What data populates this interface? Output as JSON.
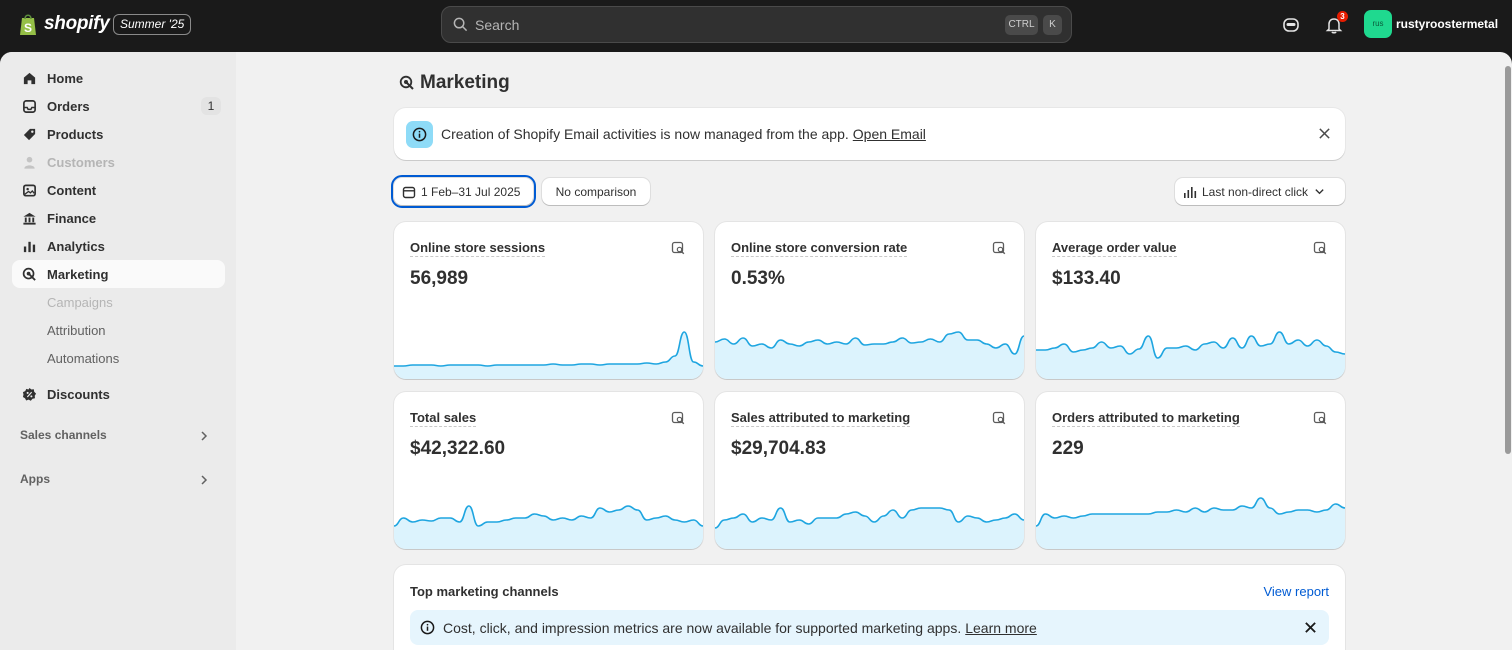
{
  "topbar": {
    "brand": "shopify",
    "edition": "Summer '25",
    "search_placeholder": "Search",
    "shortcut_ctrl": "CTRL",
    "shortcut_k": "K",
    "notification_count": "3",
    "avatar_initials": "rus",
    "store_name": "rustyroostermetal"
  },
  "sidebar": {
    "items": [
      {
        "label": "Home",
        "icon": "home-icon"
      },
      {
        "label": "Orders",
        "icon": "inbox-icon",
        "count": "1"
      },
      {
        "label": "Products",
        "icon": "tag-icon"
      },
      {
        "label": "Customers",
        "icon": "person-icon"
      },
      {
        "label": "Content",
        "icon": "content-icon"
      },
      {
        "label": "Finance",
        "icon": "bank-icon"
      },
      {
        "label": "Analytics",
        "icon": "bar-chart-icon"
      },
      {
        "label": "Marketing",
        "icon": "target-icon"
      }
    ],
    "sub_items": [
      "Campaigns",
      "Attribution",
      "Automations"
    ],
    "discounts": "Discounts",
    "sales_channels": "Sales channels",
    "apps": "Apps"
  },
  "page": {
    "title": "Marketing",
    "banner_text": "Creation of Shopify Email activities is now managed from the app.",
    "banner_link": "Open Email",
    "date_range": "1 Feb–31 Jul 2025",
    "comparison": "No comparison",
    "attribution": "Last non-direct click"
  },
  "metrics": [
    {
      "title": "Online store sessions",
      "value": "56,989"
    },
    {
      "title": "Online store conversion rate",
      "value": "0.53%"
    },
    {
      "title": "Average order value",
      "value": "$133.40"
    },
    {
      "title": "Total sales",
      "value": "$42,322.60"
    },
    {
      "title": "Sales attributed to marketing",
      "value": "$29,704.83"
    },
    {
      "title": "Orders attributed to marketing",
      "value": "229"
    }
  ],
  "top_channels": {
    "title": "Top marketing channels",
    "view_report": "View report",
    "info_text": "Cost, click, and impression metrics are now available for supported marketing apps.",
    "info_link": "Learn more"
  },
  "colors": {
    "accent": "#005bd3",
    "sparkline": "#1ea5e0",
    "sparkfill": "#cdeefc",
    "topbar": "#1a1a1a",
    "avatar": "#1fd98f"
  }
}
